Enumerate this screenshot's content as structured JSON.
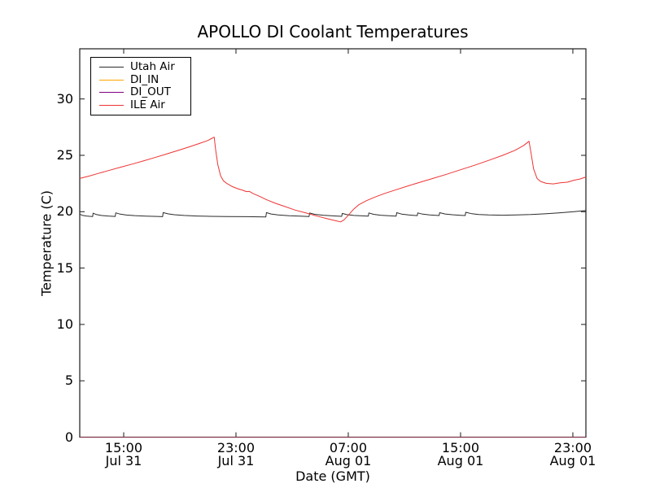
{
  "chart_data": {
    "type": "line",
    "title": "APOLLO DI Coolant Temperatures",
    "xlabel": "Date (GMT)",
    "ylabel": "Temperature (C)",
    "x_unit": "hours since Jul 31 00:00 GMT",
    "xlim": [
      11.87,
      47.93
    ],
    "ylim": [
      0,
      34.45
    ],
    "grid": false,
    "tick_direction": "in",
    "frame_color": "#1a1a1a",
    "x_ticks": [
      {
        "value": 15,
        "time": "15:00",
        "date": "Jul 31"
      },
      {
        "value": 23,
        "time": "23:00",
        "date": "Jul 31"
      },
      {
        "value": 31,
        "time": "07:00",
        "date": "Aug 01"
      },
      {
        "value": 39,
        "time": "15:00",
        "date": "Aug 01"
      },
      {
        "value": 47,
        "time": "23:00",
        "date": "Aug 01"
      }
    ],
    "y_ticks": [
      0,
      5,
      10,
      15,
      20,
      25,
      30
    ],
    "legend": {
      "position": "upper left",
      "entries": [
        "Utah Air",
        "DI_IN",
        "DI_OUT",
        "ILE Air"
      ]
    },
    "series": [
      {
        "name": "Utah Air",
        "color": "#2b2b2b",
        "width": 1,
        "points": [
          [
            11.87,
            19.78
          ],
          [
            12.05,
            19.68
          ],
          [
            12.35,
            19.62
          ],
          [
            12.6,
            19.59
          ],
          [
            12.79,
            19.57
          ],
          [
            12.82,
            19.87
          ],
          [
            13.05,
            19.75
          ],
          [
            13.4,
            19.67
          ],
          [
            13.9,
            19.62
          ],
          [
            14.4,
            19.58
          ],
          [
            14.44,
            19.9
          ],
          [
            14.75,
            19.78
          ],
          [
            15.2,
            19.7
          ],
          [
            15.8,
            19.65
          ],
          [
            16.6,
            19.61
          ],
          [
            17.4,
            19.58
          ],
          [
            17.77,
            19.56
          ],
          [
            17.81,
            19.92
          ],
          [
            18.15,
            19.81
          ],
          [
            18.6,
            19.73
          ],
          [
            19.3,
            19.67
          ],
          [
            20.2,
            19.62
          ],
          [
            21.2,
            19.59
          ],
          [
            22.4,
            19.57
          ],
          [
            23.8,
            19.56
          ],
          [
            25.13,
            19.54
          ],
          [
            25.17,
            19.92
          ],
          [
            25.5,
            19.8
          ],
          [
            26.0,
            19.71
          ],
          [
            26.8,
            19.64
          ],
          [
            27.6,
            19.6
          ],
          [
            28.21,
            19.57
          ],
          [
            28.25,
            19.88
          ],
          [
            28.6,
            19.77
          ],
          [
            29.2,
            19.69
          ],
          [
            29.9,
            19.63
          ],
          [
            30.53,
            19.59
          ],
          [
            30.57,
            19.85
          ],
          [
            30.9,
            19.74
          ],
          [
            31.4,
            19.67
          ],
          [
            32.0,
            19.63
          ],
          [
            32.43,
            19.6
          ],
          [
            32.47,
            19.89
          ],
          [
            32.8,
            19.77
          ],
          [
            33.3,
            19.69
          ],
          [
            33.9,
            19.64
          ],
          [
            34.41,
            19.61
          ],
          [
            34.45,
            19.91
          ],
          [
            34.8,
            19.79
          ],
          [
            35.3,
            19.71
          ],
          [
            35.91,
            19.65
          ],
          [
            35.95,
            19.89
          ],
          [
            36.3,
            19.78
          ],
          [
            36.8,
            19.71
          ],
          [
            37.47,
            19.66
          ],
          [
            37.51,
            19.91
          ],
          [
            37.9,
            19.8
          ],
          [
            38.4,
            19.73
          ],
          [
            39.0,
            19.68
          ],
          [
            39.33,
            19.66
          ],
          [
            39.37,
            19.95
          ],
          [
            39.8,
            19.82
          ],
          [
            40.3,
            19.75
          ],
          [
            41.0,
            19.71
          ],
          [
            42.0,
            19.69
          ],
          [
            43.0,
            19.71
          ],
          [
            44.0,
            19.75
          ],
          [
            45.0,
            19.81
          ],
          [
            46.0,
            19.89
          ],
          [
            47.0,
            19.99
          ],
          [
            47.93,
            20.1
          ]
        ]
      },
      {
        "name": "DI_IN",
        "color": "#ffa500",
        "width": 1,
        "opacity": 0.5,
        "points": [
          [
            11.87,
            0
          ],
          [
            47.93,
            0
          ]
        ]
      },
      {
        "name": "DI_OUT",
        "color": "#800080",
        "width": 1,
        "opacity": 0.5,
        "points": [
          [
            11.87,
            0
          ],
          [
            47.93,
            0
          ]
        ]
      },
      {
        "name": "ILE Air",
        "color": "#ee3333",
        "width": 1,
        "points": [
          [
            11.87,
            22.95
          ],
          [
            12.5,
            23.15
          ],
          [
            13.2,
            23.4
          ],
          [
            14.0,
            23.68
          ],
          [
            14.8,
            23.95
          ],
          [
            15.6,
            24.22
          ],
          [
            16.4,
            24.5
          ],
          [
            17.2,
            24.8
          ],
          [
            18.0,
            25.1
          ],
          [
            18.8,
            25.4
          ],
          [
            19.6,
            25.72
          ],
          [
            20.4,
            26.05
          ],
          [
            21.0,
            26.32
          ],
          [
            21.35,
            26.55
          ],
          [
            21.45,
            26.62
          ],
          [
            21.55,
            25.5
          ],
          [
            21.7,
            24.2
          ],
          [
            21.9,
            23.2
          ],
          [
            22.1,
            22.75
          ],
          [
            22.35,
            22.5
          ],
          [
            22.7,
            22.25
          ],
          [
            23.1,
            22.05
          ],
          [
            23.5,
            21.9
          ],
          [
            23.75,
            21.78
          ],
          [
            23.95,
            21.8
          ],
          [
            24.2,
            21.62
          ],
          [
            24.7,
            21.35
          ],
          [
            25.2,
            21.05
          ],
          [
            25.8,
            20.75
          ],
          [
            26.5,
            20.45
          ],
          [
            27.2,
            20.15
          ],
          [
            28.0,
            19.88
          ],
          [
            28.8,
            19.6
          ],
          [
            29.5,
            19.38
          ],
          [
            30.1,
            19.2
          ],
          [
            30.45,
            19.1
          ],
          [
            30.7,
            19.28
          ],
          [
            31.0,
            19.68
          ],
          [
            31.35,
            20.18
          ],
          [
            31.75,
            20.62
          ],
          [
            32.3,
            20.98
          ],
          [
            32.9,
            21.3
          ],
          [
            33.6,
            21.62
          ],
          [
            34.4,
            21.95
          ],
          [
            35.3,
            22.3
          ],
          [
            36.2,
            22.65
          ],
          [
            37.1,
            22.98
          ],
          [
            38.0,
            23.32
          ],
          [
            39.0,
            23.72
          ],
          [
            40.0,
            24.12
          ],
          [
            41.0,
            24.55
          ],
          [
            42.0,
            25.0
          ],
          [
            42.9,
            25.45
          ],
          [
            43.5,
            25.88
          ],
          [
            43.88,
            26.25
          ],
          [
            44.02,
            25.2
          ],
          [
            44.2,
            23.8
          ],
          [
            44.45,
            22.95
          ],
          [
            44.7,
            22.68
          ],
          [
            45.1,
            22.52
          ],
          [
            45.6,
            22.47
          ],
          [
            46.1,
            22.56
          ],
          [
            46.6,
            22.62
          ],
          [
            47.1,
            22.8
          ],
          [
            47.5,
            22.9
          ],
          [
            47.93,
            23.08
          ]
        ]
      }
    ]
  }
}
